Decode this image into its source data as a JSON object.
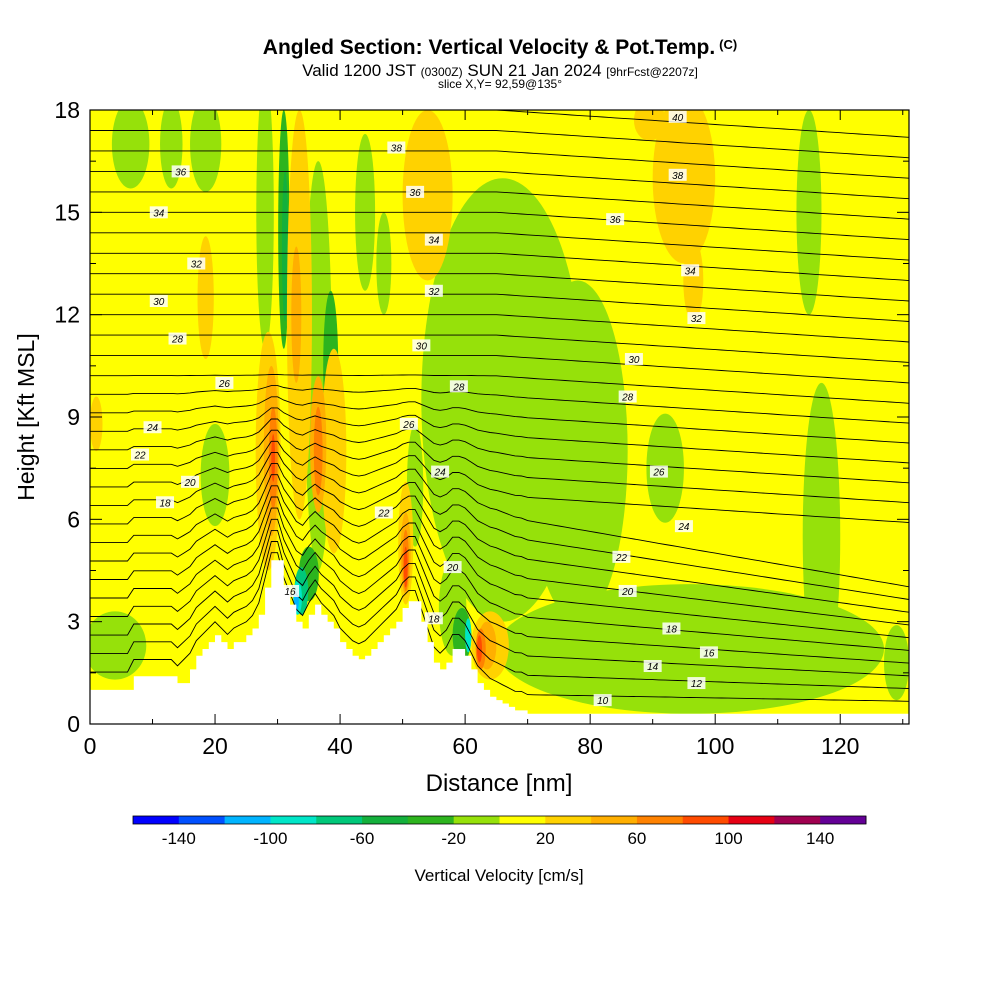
{
  "header": {
    "title": "Angled Section: Vertical Velocity & Pot.Temp.",
    "title_mark": "(C)",
    "valid_prefix": "Valid 1200 JST",
    "valid_utc": "(0300Z)",
    "valid_date": "SUN 21 Jan 2024",
    "valid_fcst": "[9hrFcst@2207z]",
    "slice": "slice X,Y= 92,59@135°"
  },
  "chart_data": {
    "type": "heatmap",
    "title": "Angled Section: Vertical Velocity & Pot.Temp.",
    "xlabel": "Distance [nm]",
    "ylabel": "Height [Kft MSL]",
    "xlim": [
      0,
      131
    ],
    "ylim": [
      0,
      18
    ],
    "x_ticks": [
      0,
      20,
      40,
      60,
      80,
      100,
      120
    ],
    "y_ticks": [
      0,
      3,
      6,
      9,
      12,
      15,
      18
    ],
    "grid": false,
    "background_field": "0 to 20",
    "terrain": {
      "x": [
        0,
        6,
        7,
        13,
        14,
        16,
        17,
        18,
        19,
        20,
        21,
        22,
        23,
        25,
        26,
        27,
        28,
        29,
        30,
        31,
        32,
        33,
        34,
        35,
        36,
        37,
        38,
        39,
        40,
        41,
        42,
        43,
        44,
        45,
        46,
        47,
        48,
        49,
        50,
        51,
        52,
        53,
        54,
        55,
        56,
        57,
        58,
        59,
        60,
        61,
        62,
        63,
        64,
        65,
        66,
        67,
        68,
        69,
        70,
        72,
        74,
        76,
        78,
        80,
        85,
        90,
        95,
        100,
        105,
        110,
        115,
        118,
        120,
        122,
        124,
        126,
        127,
        128,
        129,
        130,
        131
      ],
      "height": [
        1.0,
        1.0,
        1.4,
        1.4,
        1.2,
        1.6,
        2.0,
        2.2,
        2.4,
        2.6,
        2.4,
        2.2,
        2.4,
        2.6,
        2.8,
        3.2,
        4.0,
        4.8,
        4.8,
        4.0,
        3.5,
        3.0,
        2.8,
        3.2,
        3.5,
        3.2,
        3.0,
        2.8,
        2.4,
        2.2,
        2.0,
        1.9,
        2.0,
        2.2,
        2.4,
        2.6,
        2.8,
        3.0,
        3.4,
        3.6,
        3.6,
        3.0,
        2.4,
        1.8,
        1.6,
        1.8,
        2.2,
        2.2,
        2.0,
        1.6,
        1.2,
        1.0,
        0.8,
        0.7,
        0.6,
        0.5,
        0.4,
        0.4,
        0.3,
        0.3,
        0.3,
        0.3,
        0.3,
        0.3,
        0.3,
        0.3,
        0.3,
        0.3,
        0.3,
        0.3,
        0.3,
        0.3,
        0.3,
        0.3,
        0.3,
        0.3,
        0.3,
        0.3,
        0.3,
        0.3,
        0.3
      ]
    },
    "isentropes": {
      "levels": [
        10,
        12,
        14,
        16,
        18,
        20,
        22,
        24,
        26,
        28,
        30,
        32,
        34,
        36,
        38,
        40
      ],
      "labels": [
        {
          "text": "36",
          "x": 14.5,
          "y": 16.2
        },
        {
          "text": "34",
          "x": 11,
          "y": 15.0
        },
        {
          "text": "32",
          "x": 17,
          "y": 13.5
        },
        {
          "text": "30",
          "x": 11,
          "y": 12.4
        },
        {
          "text": "28",
          "x": 14,
          "y": 11.3
        },
        {
          "text": "26",
          "x": 21.5,
          "y": 10.0
        },
        {
          "text": "24",
          "x": 10,
          "y": 8.7
        },
        {
          "text": "22",
          "x": 8,
          "y": 7.9
        },
        {
          "text": "20",
          "x": 16,
          "y": 7.1
        },
        {
          "text": "18",
          "x": 12,
          "y": 6.5
        },
        {
          "text": "38",
          "x": 49,
          "y": 16.9
        },
        {
          "text": "36",
          "x": 52,
          "y": 15.6
        },
        {
          "text": "34",
          "x": 55,
          "y": 14.2
        },
        {
          "text": "32",
          "x": 55,
          "y": 12.7
        },
        {
          "text": "30",
          "x": 53,
          "y": 11.1
        },
        {
          "text": "28",
          "x": 59,
          "y": 9.9
        },
        {
          "text": "26",
          "x": 51,
          "y": 8.8
        },
        {
          "text": "24",
          "x": 56,
          "y": 7.4
        },
        {
          "text": "22",
          "x": 47,
          "y": 6.2
        },
        {
          "text": "20",
          "x": 58,
          "y": 4.6
        },
        {
          "text": "18",
          "x": 55,
          "y": 3.1
        },
        {
          "text": "16",
          "x": 32,
          "y": 3.9
        },
        {
          "text": "40",
          "x": 94,
          "y": 17.8
        },
        {
          "text": "38",
          "x": 94,
          "y": 16.1
        },
        {
          "text": "36",
          "x": 84,
          "y": 14.8
        },
        {
          "text": "34",
          "x": 96,
          "y": 13.3
        },
        {
          "text": "32",
          "x": 97,
          "y": 11.9
        },
        {
          "text": "30",
          "x": 87,
          "y": 10.7
        },
        {
          "text": "28",
          "x": 86,
          "y": 9.6
        },
        {
          "text": "26",
          "x": 91,
          "y": 7.4
        },
        {
          "text": "24",
          "x": 95,
          "y": 5.8
        },
        {
          "text": "22",
          "x": 85,
          "y": 4.9
        },
        {
          "text": "20",
          "x": 86,
          "y": 3.9
        },
        {
          "text": "18",
          "x": 93,
          "y": 2.8
        },
        {
          "text": "16",
          "x": 99,
          "y": 2.1
        },
        {
          "text": "14",
          "x": 90,
          "y": 1.7
        },
        {
          "text": "12",
          "x": 97,
          "y": 1.2
        },
        {
          "text": "10",
          "x": 82,
          "y": 0.7
        }
      ]
    },
    "colorbar": {
      "label": "Vertical Velocity [cm/s]",
      "tick_labels": [
        "-140",
        "-100",
        "-60",
        "-20",
        "20",
        "60",
        "100",
        "140"
      ],
      "bins": [
        {
          "range": "-160 to -140",
          "color": "#0000ff"
        },
        {
          "range": "-140 to -120",
          "color": "#0050ff"
        },
        {
          "range": "-120 to -100",
          "color": "#00b4ff"
        },
        {
          "range": "-100 to -80",
          "color": "#00e6c8"
        },
        {
          "range": "-80 to -60",
          "color": "#00c87a"
        },
        {
          "range": "-60 to -40",
          "color": "#14b03c"
        },
        {
          "range": "-40 to -20",
          "color": "#2db41e"
        },
        {
          "range": "-20 to 0",
          "color": "#96e10a"
        },
        {
          "range": "0 to 20",
          "color": "#ffff00"
        },
        {
          "range": "20 to 40",
          "color": "#ffd200"
        },
        {
          "range": "40 to 60",
          "color": "#ffaf00"
        },
        {
          "range": "60 to 80",
          "color": "#ff8200"
        },
        {
          "range": "80 to 100",
          "color": "#ff4b00"
        },
        {
          "range": "100 to 120",
          "color": "#e60014"
        },
        {
          "range": "120 to 140",
          "color": "#a00050"
        },
        {
          "range": "140 to 160",
          "color": "#640096"
        }
      ]
    },
    "regions": [
      {
        "value": "-20 to 0",
        "shape": "ellipse",
        "cx": 66,
        "cy": 9.5,
        "rx": 13,
        "ry": 6.5
      },
      {
        "value": "-20 to 0",
        "shape": "ellipse",
        "cx": 78,
        "cy": 8,
        "rx": 8,
        "ry": 5
      },
      {
        "value": "-20 to 0",
        "shape": "ellipse",
        "cx": 96,
        "cy": 2.2,
        "rx": 31,
        "ry": 1.9
      },
      {
        "value": "-20 to 0",
        "shape": "ellipse",
        "cx": 117,
        "cy": 5.5,
        "rx": 3,
        "ry": 4.5
      },
      {
        "value": "-20 to 0",
        "shape": "ellipse",
        "cx": 115,
        "cy": 15,
        "rx": 2,
        "ry": 3
      },
      {
        "value": "-20 to 0",
        "shape": "ellipse",
        "cx": 92,
        "cy": 7.5,
        "rx": 3,
        "ry": 1.6
      },
      {
        "value": "-20 to 0",
        "shape": "ellipse",
        "cx": 20,
        "cy": 7.3,
        "rx": 2.3,
        "ry": 1.5
      },
      {
        "value": "-20 to 0",
        "shape": "ellipse",
        "cx": 4,
        "cy": 2.3,
        "rx": 5,
        "ry": 1
      },
      {
        "value": "-20 to 0",
        "shape": "ellipse",
        "cx": 6.5,
        "cy": 17,
        "rx": 3,
        "ry": 1.3
      },
      {
        "value": "-20 to 0",
        "shape": "ellipse",
        "cx": 13,
        "cy": 17,
        "rx": 1.8,
        "ry": 1.3
      },
      {
        "value": "-20 to 0",
        "shape": "ellipse",
        "cx": 18.5,
        "cy": 17,
        "rx": 2.5,
        "ry": 1.4
      },
      {
        "value": "-20 to 0",
        "shape": "ellipse",
        "cx": 36.5,
        "cy": 10.5,
        "rx": 2.2,
        "ry": 6
      },
      {
        "value": "-20 to 0",
        "shape": "ellipse",
        "cx": 28,
        "cy": 15,
        "rx": 1.4,
        "ry": 4
      },
      {
        "value": "-20 to 0",
        "shape": "ellipse",
        "cx": 44,
        "cy": 15,
        "rx": 1.6,
        "ry": 2.3
      },
      {
        "value": "-20 to 0",
        "shape": "ellipse",
        "cx": 47,
        "cy": 13.5,
        "rx": 1.2,
        "ry": 1.5
      },
      {
        "value": "-20 to 0",
        "shape": "ellipse",
        "cx": 52,
        "cy": 7,
        "rx": 1.3,
        "ry": 1.8
      },
      {
        "value": "-20 to 0",
        "shape": "ellipse",
        "cx": 58,
        "cy": 3.4,
        "rx": 2.2,
        "ry": 1.4
      },
      {
        "value": "-20 to 0",
        "shape": "ellipse",
        "cx": 129,
        "cy": 1.8,
        "rx": 2,
        "ry": 1.1
      },
      {
        "value": "-40 to -20",
        "shape": "ellipse",
        "cx": 31,
        "cy": 14.5,
        "rx": 0.9,
        "ry": 3.5
      },
      {
        "value": "-40 to -20",
        "shape": "ellipse",
        "cx": 38.5,
        "cy": 10.5,
        "rx": 1.2,
        "ry": 2.2
      },
      {
        "value": "-40 to -20",
        "shape": "ellipse",
        "cx": 35,
        "cy": 4.4,
        "rx": 1.6,
        "ry": 0.8
      },
      {
        "value": "-40 to -20",
        "shape": "ellipse",
        "cx": 59.5,
        "cy": 2.6,
        "rx": 1.5,
        "ry": 0.8
      },
      {
        "value": "-60 to -40",
        "shape": "ellipse",
        "cx": 31.2,
        "cy": 14,
        "rx": 0.5,
        "ry": 2.2
      },
      {
        "value": "-80 to -60",
        "shape": "ellipse",
        "cx": 33.8,
        "cy": 3.9,
        "rx": 1.1,
        "ry": 0.7
      },
      {
        "value": "-100 to -80",
        "shape": "ellipse",
        "cx": 33.2,
        "cy": 3.7,
        "rx": 0.7,
        "ry": 0.5
      },
      {
        "value": "-100 to -80",
        "shape": "ellipse",
        "cx": 60.5,
        "cy": 2.6,
        "rx": 0.5,
        "ry": 0.5
      },
      {
        "value": "-120 to -100",
        "shape": "ellipse",
        "cx": 33,
        "cy": 3.6,
        "rx": 0.4,
        "ry": 0.3
      },
      {
        "value": "20 to 40",
        "shape": "ellipse",
        "cx": 54,
        "cy": 15.5,
        "rx": 4,
        "ry": 2.5
      },
      {
        "value": "20 to 40",
        "shape": "ellipse",
        "cx": 95,
        "cy": 16,
        "rx": 5,
        "ry": 2.5
      },
      {
        "value": "20 to 40",
        "shape": "ellipse",
        "cx": 96.5,
        "cy": 13,
        "rx": 1.6,
        "ry": 1.2
      },
      {
        "value": "20 to 40",
        "shape": "ellipse",
        "cx": 89.5,
        "cy": 17.7,
        "rx": 2.5,
        "ry": 0.6
      },
      {
        "value": "20 to 40",
        "shape": "ellipse",
        "cx": 33.5,
        "cy": 12,
        "rx": 2,
        "ry": 6
      },
      {
        "value": "20 to 40",
        "shape": "ellipse",
        "cx": 39,
        "cy": 8,
        "rx": 2,
        "ry": 3
      },
      {
        "value": "20 to 40",
        "shape": "ellipse",
        "cx": 28.5,
        "cy": 8,
        "rx": 2,
        "ry": 3.5
      },
      {
        "value": "20 to 40",
        "shape": "ellipse",
        "cx": 18.5,
        "cy": 12.5,
        "rx": 1.3,
        "ry": 1.8
      },
      {
        "value": "20 to 40",
        "shape": "ellipse",
        "cx": 1,
        "cy": 8.8,
        "rx": 1,
        "ry": 0.8
      },
      {
        "value": "20 to 40",
        "shape": "ellipse",
        "cx": 64,
        "cy": 2.3,
        "rx": 3,
        "ry": 1
      },
      {
        "value": "20 to 40",
        "shape": "ellipse",
        "cx": 50.5,
        "cy": 5.3,
        "rx": 1.2,
        "ry": 1.8
      },
      {
        "value": "40 to 60",
        "shape": "ellipse",
        "cx": 29,
        "cy": 8,
        "rx": 1.2,
        "ry": 2.5
      },
      {
        "value": "40 to 60",
        "shape": "ellipse",
        "cx": 36.5,
        "cy": 8.2,
        "rx": 1.3,
        "ry": 2
      },
      {
        "value": "40 to 60",
        "shape": "ellipse",
        "cx": 33,
        "cy": 12,
        "rx": 0.8,
        "ry": 2
      },
      {
        "value": "40 to 60",
        "shape": "ellipse",
        "cx": 50.5,
        "cy": 5,
        "rx": 0.8,
        "ry": 1.2
      },
      {
        "value": "40 to 60",
        "shape": "ellipse",
        "cx": 63.5,
        "cy": 2.3,
        "rx": 1.5,
        "ry": 0.7
      },
      {
        "value": "60 to 80",
        "shape": "ellipse",
        "cx": 29.3,
        "cy": 7.8,
        "rx": 0.7,
        "ry": 1.5
      },
      {
        "value": "60 to 80",
        "shape": "ellipse",
        "cx": 36.5,
        "cy": 8,
        "rx": 0.7,
        "ry": 1.3
      },
      {
        "value": "60 to 80",
        "shape": "ellipse",
        "cx": 50.5,
        "cy": 4.8,
        "rx": 0.5,
        "ry": 0.9
      },
      {
        "value": "60 to 80",
        "shape": "ellipse",
        "cx": 62.5,
        "cy": 2.2,
        "rx": 0.8,
        "ry": 0.6
      },
      {
        "value": "80 to 100",
        "shape": "ellipse",
        "cx": 50.5,
        "cy": 4.6,
        "rx": 0.3,
        "ry": 0.6
      },
      {
        "value": "80 to 100",
        "shape": "ellipse",
        "cx": 62.3,
        "cy": 2.2,
        "rx": 0.4,
        "ry": 0.4
      },
      {
        "value": "80 to 100",
        "shape": "ellipse",
        "cx": 29.3,
        "cy": 7.8,
        "rx": 0.3,
        "ry": 0.7
      }
    ]
  }
}
